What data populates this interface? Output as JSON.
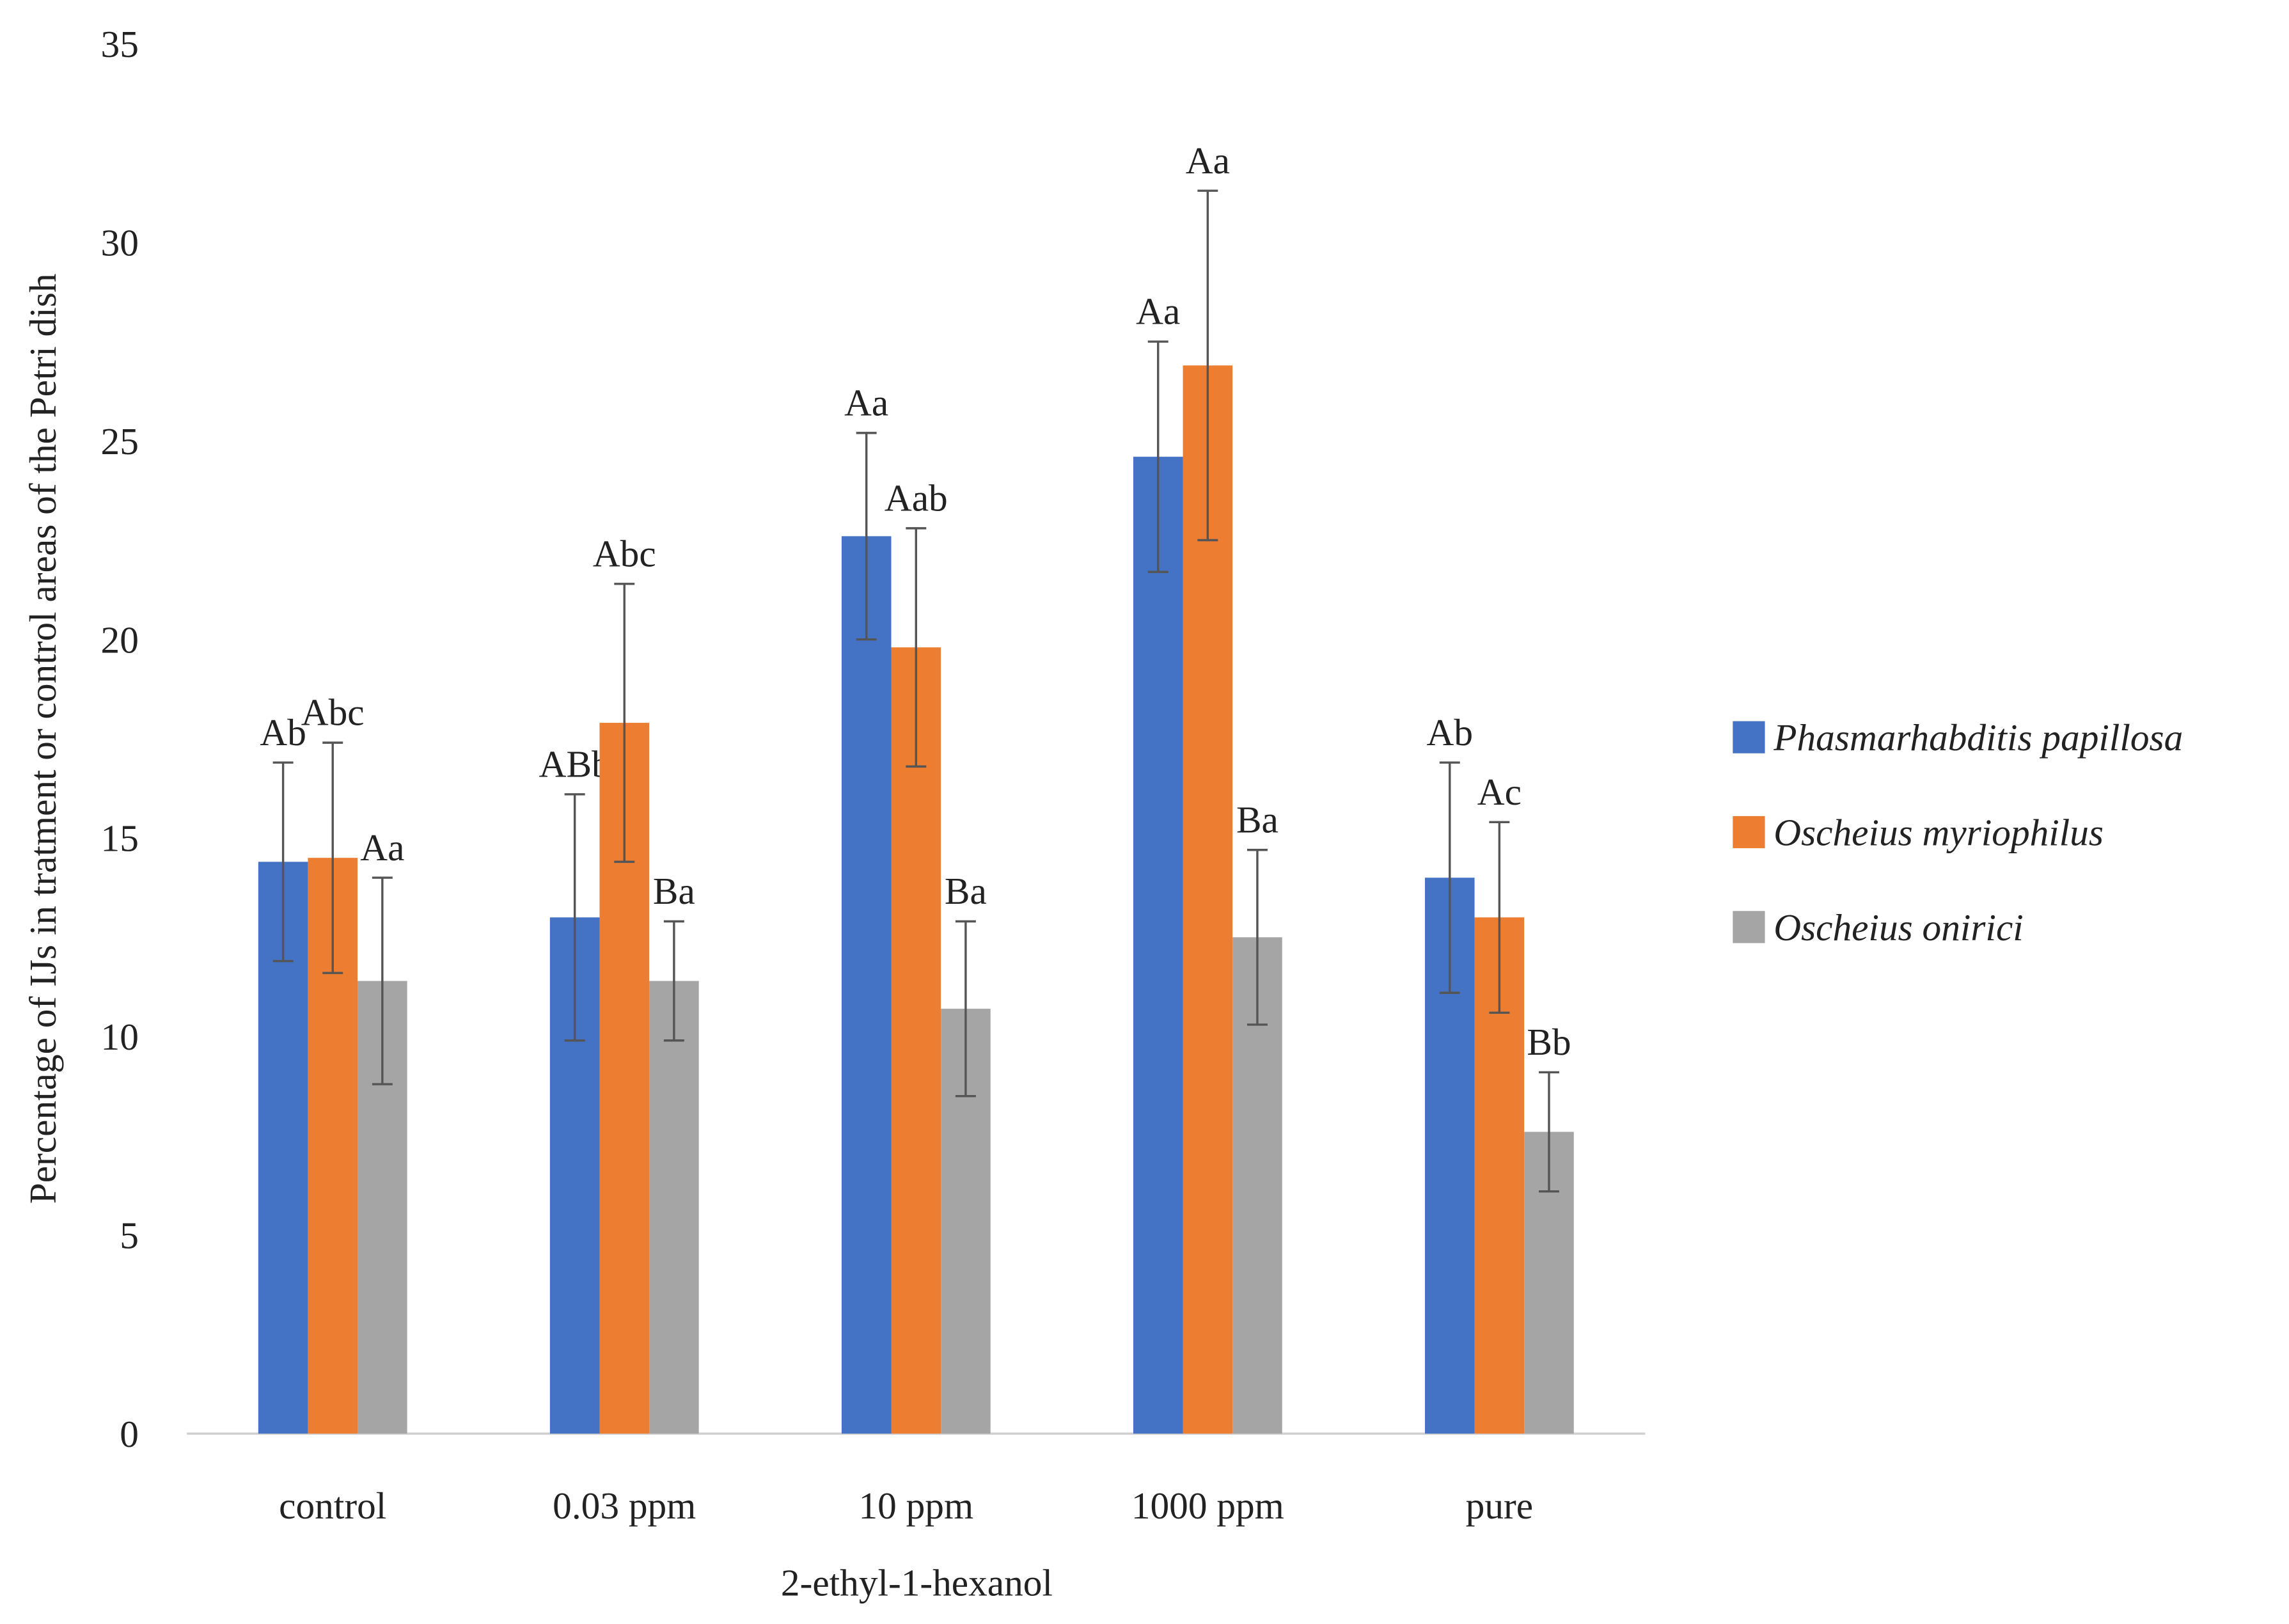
{
  "chart_data": {
    "type": "bar",
    "x_label": "2-ethyl-1-hexanol",
    "y_label": "Percentage of IJs in tratment or control areas of the Petri dish",
    "categories": [
      "control",
      "0.03 ppm",
      "10 ppm",
      "1000 ppm",
      "pure"
    ],
    "series": [
      {
        "name": "Phasmarhabditis papillosa",
        "color": "#4472c4",
        "values": [
          14.4,
          13.0,
          22.6,
          24.6,
          14.0
        ],
        "errors": [
          2.5,
          3.1,
          2.6,
          2.9,
          2.9
        ],
        "labels": [
          "Ab",
          "ABb",
          "Aa",
          "Aa",
          "Ab"
        ]
      },
      {
        "name": "Oscheius myriophilus",
        "color": "#ed7d31",
        "values": [
          14.5,
          17.9,
          19.8,
          26.9,
          13.0
        ],
        "errors": [
          2.9,
          3.5,
          3.0,
          4.4,
          2.4
        ],
        "labels": [
          "Abc",
          "Abc",
          "Aab",
          "Aa",
          "Ac"
        ]
      },
      {
        "name": "Oscheius onirici",
        "color": "#a5a5a5",
        "values": [
          11.4,
          11.4,
          10.7,
          12.5,
          7.6
        ],
        "errors": [
          2.6,
          1.5,
          2.2,
          2.2,
          1.5
        ],
        "labels": [
          "Aa",
          "Ba",
          "Ba",
          "Ba",
          "Bb"
        ]
      }
    ],
    "ylim": [
      0,
      35
    ],
    "yticks": [
      0,
      5,
      10,
      15,
      20,
      25,
      30,
      35
    ],
    "grid": false,
    "legend": "right"
  }
}
